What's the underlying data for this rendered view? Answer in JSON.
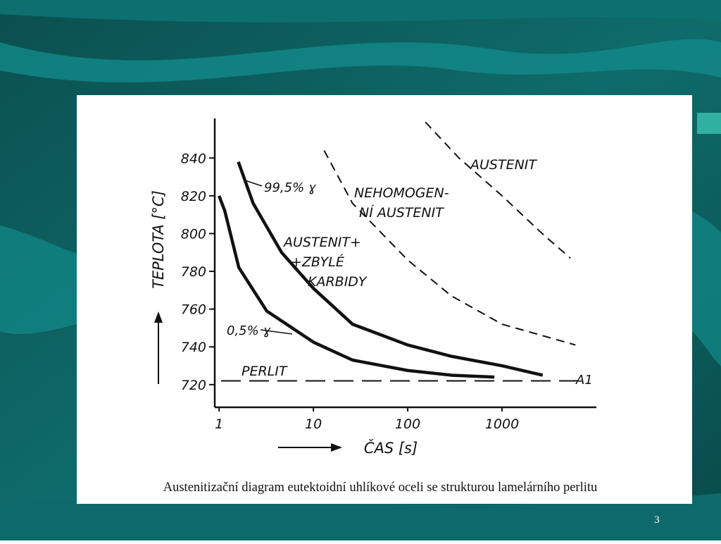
{
  "chart_data": {
    "type": "line",
    "x_label": "ČAS [s]",
    "y_label": "TEPLOTA [°C]",
    "caption": "Austenitizační diagram eutektoidní uhlíkové oceli se strukturou lamelárního perlitu",
    "log_x": true,
    "xlim": [
      0.9,
      10000
    ],
    "xticks": [
      1,
      10,
      100,
      1000
    ],
    "ylim": [
      708,
      861
    ],
    "yticks": [
      720,
      740,
      760,
      780,
      800,
      820,
      840
    ],
    "series": [
      {
        "name": "0,5% ɣ",
        "color": "#111111",
        "style": "solid",
        "x": [
          1,
          1.15,
          1.62,
          3.2,
          10,
          26,
          100,
          290,
          830
        ],
        "values": [
          820,
          812,
          782,
          759,
          742.5,
          733,
          727.5,
          725,
          724
        ]
      },
      {
        "name": "99,5% ɣ",
        "color": "#111111",
        "style": "solid",
        "x": [
          1.6,
          2.3,
          4.6,
          10,
          26,
          100,
          290,
          1000,
          2700
        ],
        "values": [
          838,
          816,
          790,
          771,
          752,
          741,
          735,
          730,
          725
        ]
      },
      {
        "color": "#111111",
        "style": "dashed",
        "x": [
          13,
          26,
          100,
          290,
          1000,
          6000
        ],
        "values": [
          844,
          816,
          786,
          767,
          752,
          741
        ]
      },
      {
        "color": "#111111",
        "style": "dashed",
        "x": [
          154,
          350,
          1000,
          2800,
          5300
        ],
        "values": [
          859,
          840,
          820,
          799,
          787
        ]
      },
      {
        "name": "A1",
        "color": "#111111",
        "style": "longdash",
        "x": [
          1.05,
          6600
        ],
        "values": [
          722,
          722
        ]
      }
    ],
    "annotations": [
      "AUSTENIT",
      "NEHOMOGEN-",
      "NÍ AUSTENIT",
      "AUSTENIT+",
      "+ZBYLÉ",
      "KARBIDY",
      "PERLIT"
    ]
  },
  "page_number": "3"
}
